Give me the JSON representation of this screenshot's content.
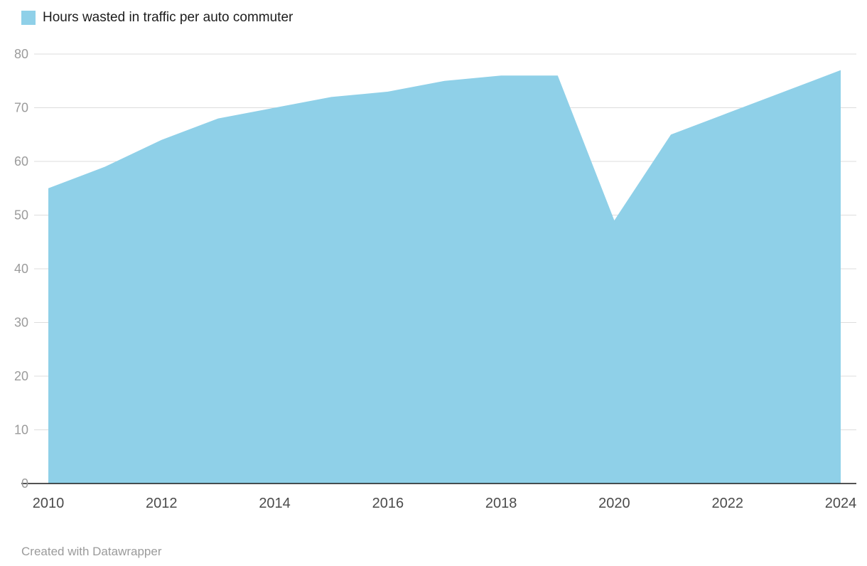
{
  "legend": {
    "label": "Hours wasted in traffic per auto commuter",
    "swatch_color": "#8FD0E8"
  },
  "footer": {
    "credit": "Created with Datawrapper"
  },
  "chart_data": {
    "type": "area",
    "title": "Hours wasted in traffic per auto commuter",
    "series": [
      {
        "name": "Hours wasted in traffic per auto commuter",
        "values": [
          55,
          59,
          64,
          68,
          70,
          72,
          73,
          75,
          76,
          76,
          49,
          65,
          69,
          73,
          77
        ]
      }
    ],
    "x": [
      2010,
      2011,
      2012,
      2013,
      2014,
      2015,
      2016,
      2017,
      2018,
      2019,
      2020,
      2021,
      2022,
      2023,
      2024
    ],
    "xlabel": "",
    "ylabel": "",
    "xlim": [
      2010,
      2024
    ],
    "ylim": [
      0,
      80
    ],
    "y_ticks": [
      0,
      10,
      20,
      30,
      40,
      50,
      60,
      70,
      80
    ],
    "x_ticks": [
      2010,
      2012,
      2014,
      2016,
      2018,
      2020,
      2022,
      2024
    ],
    "grid": "horizontal",
    "legend_position": "top-left",
    "colors": {
      "area": "#8FD0E8",
      "grid": "#DDDDDD",
      "baseline": "#1A1A1A",
      "y_tick_text": "#9B9B9B",
      "x_tick_text": "#4B4B4B",
      "title_text": "#1D1D1D",
      "footer_text": "#9B9B9B"
    }
  }
}
